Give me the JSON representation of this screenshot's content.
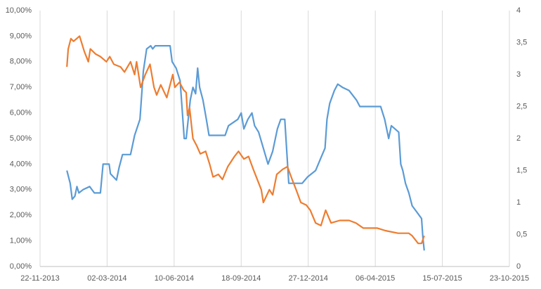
{
  "chart_data": {
    "type": "line",
    "xlim": [
      "22-11-2013",
      "23-10-2015"
    ],
    "xticks": [
      "22-11-2013",
      "02-03-2014",
      "10-06-2014",
      "18-09-2014",
      "27-12-2014",
      "06-04-2015",
      "15-07-2015",
      "23-10-2015"
    ],
    "ylim": [
      0,
      10
    ],
    "yticks": [
      {
        "value": 0,
        "label": "0,00%"
      },
      {
        "value": 1,
        "label": "1,00%"
      },
      {
        "value": 2,
        "label": "2,00%"
      },
      {
        "value": 3,
        "label": "3,00%"
      },
      {
        "value": 4,
        "label": "4,00%"
      },
      {
        "value": 5,
        "label": "5,00%"
      },
      {
        "value": 6,
        "label": "6,00%"
      },
      {
        "value": 7,
        "label": "7,00%"
      },
      {
        "value": 8,
        "label": "8,00%"
      },
      {
        "value": 9,
        "label": "9,00%"
      },
      {
        "value": 10,
        "label": "10,00%"
      }
    ],
    "y2lim": [
      0,
      4
    ],
    "y2ticks": [
      0,
      {
        "value": 0.5,
        "label": "0,5"
      },
      1,
      {
        "value": 1.5,
        "label": "1,5"
      },
      2,
      {
        "value": 2.5,
        "label": "2,5"
      },
      3,
      {
        "value": 3.5,
        "label": "3,5"
      },
      4
    ],
    "grid": "x",
    "series": [
      {
        "color": "#5b9bd5",
        "axis": "y2",
        "x": [
          "01-01-2014",
          "06-01-2014",
          "09-01-2014",
          "13-01-2014",
          "16-01-2014",
          "19-01-2014",
          "25-01-2014",
          "04-02-2014",
          "11-02-2014",
          "20-02-2014",
          "24-02-2014",
          "05-03-2014",
          "07-03-2014",
          "16-03-2014",
          "20-03-2014",
          "25-03-2014",
          "06-04-2014",
          "12-04-2014",
          "20-04-2014",
          "25-04-2014",
          "30-04-2014",
          "06-05-2014",
          "09-05-2014",
          "13-05-2014",
          "04-06-2014",
          "07-06-2014",
          "13-06-2014",
          "19-06-2014",
          "25-06-2014",
          "28-06-2014",
          "04-07-2014",
          "08-07-2014",
          "12-07-2014",
          "15-07-2014",
          "18-07-2014",
          "23-07-2014",
          "28-07-2014",
          "01-08-2014",
          "25-08-2014",
          "30-08-2014",
          "13-09-2014",
          "18-09-2014",
          "22-09-2014",
          "28-09-2014",
          "04-10-2014",
          "08-10-2014",
          "14-10-2014",
          "21-10-2014",
          "28-10-2014",
          "04-11-2014",
          "11-11-2014",
          "16-11-2014",
          "22-11-2014",
          "28-11-2014",
          "11-12-2014",
          "18-12-2014",
          "26-12-2014",
          "07-01-2015",
          "15-01-2015",
          "21-01-2015",
          "24-01-2015",
          "28-01-2015",
          "04-02-2015",
          "09-02-2015",
          "16-02-2015",
          "26-02-2015",
          "09-03-2015",
          "14-03-2015",
          "14-04-2015",
          "20-04-2015",
          "26-04-2015",
          "30-04-2015",
          "11-05-2015",
          "14-05-2015",
          "17-05-2015",
          "21-05-2015",
          "26-05-2015",
          "31-05-2015",
          "07-06-2015",
          "14-06-2015",
          "16-06-2015",
          "18-06-2015"
        ],
        "values": [
          1.5,
          1.3,
          1.05,
          1.1,
          1.25,
          1.15,
          1.2,
          1.25,
          1.15,
          1.15,
          1.6,
          1.6,
          1.45,
          1.35,
          1.55,
          1.75,
          1.75,
          2.05,
          2.3,
          3.05,
          3.4,
          3.45,
          3.4,
          3.45,
          3.45,
          3.2,
          3.1,
          2.9,
          2.0,
          2.0,
          2.6,
          2.8,
          2.7,
          3.1,
          2.8,
          2.6,
          2.3,
          2.05,
          2.05,
          2.2,
          2.3,
          2.4,
          2.15,
          2.3,
          2.4,
          2.2,
          2.1,
          1.85,
          1.6,
          1.8,
          2.15,
          2.3,
          2.3,
          1.3,
          1.3,
          1.3,
          1.4,
          1.5,
          1.7,
          1.85,
          2.3,
          2.55,
          2.75,
          2.85,
          2.8,
          2.75,
          2.6,
          2.5,
          2.5,
          2.3,
          2.0,
          2.2,
          2.1,
          1.6,
          1.5,
          1.3,
          1.15,
          0.95,
          0.85,
          0.75,
          0.45,
          0.25
        ]
      },
      {
        "color": "#ed7d31",
        "x": [
          "01-01-2014",
          "03-01-2014",
          "07-01-2014",
          "11-01-2014",
          "20-01-2014",
          "27-01-2014",
          "02-02-2014",
          "05-02-2014",
          "13-02-2014",
          "20-02-2014",
          "01-03-2014",
          "06-03-2014",
          "12-03-2014",
          "22-03-2014",
          "28-03-2014",
          "06-04-2014",
          "12-04-2014",
          "15-04-2014",
          "21-04-2014",
          "28-04-2014",
          "05-05-2014",
          "11-05-2014",
          "15-05-2014",
          "21-05-2014",
          "30-05-2014",
          "08-06-2014",
          "11-06-2014",
          "18-06-2014",
          "24-06-2014",
          "28-06-2014",
          "30-06-2014",
          "03-07-2014",
          "08-07-2014",
          "14-07-2014",
          "19-07-2014",
          "27-07-2014",
          "02-08-2014",
          "07-08-2014",
          "15-08-2014",
          "21-08-2014",
          "29-08-2014",
          "08-09-2014",
          "14-09-2014",
          "22-09-2014",
          "29-09-2014",
          "06-10-2014",
          "18-10-2014",
          "21-10-2014",
          "30-10-2014",
          "04-11-2014",
          "10-11-2014",
          "19-11-2014",
          "26-11-2014",
          "03-12-2014",
          "09-12-2014",
          "16-12-2014",
          "24-12-2014",
          "30-12-2014",
          "07-01-2015",
          "15-01-2015",
          "22-01-2015",
          "30-01-2015",
          "12-02-2015",
          "26-02-2015",
          "08-03-2015",
          "19-03-2015",
          "09-04-2015",
          "21-04-2015",
          "10-05-2015",
          "26-05-2015",
          "31-05-2015",
          "09-06-2015",
          "14-06-2015",
          "18-06-2015"
        ],
        "values": [
          7.8,
          8.5,
          8.9,
          8.8,
          9.0,
          8.4,
          8.0,
          8.5,
          8.3,
          8.2,
          8.0,
          8.2,
          7.9,
          7.8,
          7.6,
          8.0,
          7.5,
          8.0,
          7.0,
          7.5,
          7.9,
          7.0,
          6.7,
          7.1,
          6.6,
          7.5,
          7.0,
          7.2,
          6.9,
          6.8,
          5.9,
          6.2,
          5.0,
          4.7,
          4.4,
          4.5,
          4.0,
          3.5,
          3.6,
          3.4,
          3.9,
          4.3,
          4.5,
          4.2,
          4.3,
          3.8,
          3.0,
          2.5,
          3.0,
          2.8,
          3.6,
          3.8,
          3.9,
          3.4,
          3.0,
          2.5,
          2.4,
          2.2,
          1.7,
          1.6,
          2.2,
          1.7,
          1.8,
          1.8,
          1.7,
          1.5,
          1.5,
          1.4,
          1.3,
          1.3,
          1.2,
          0.9,
          0.9,
          1.2
        ]
      }
    ]
  }
}
